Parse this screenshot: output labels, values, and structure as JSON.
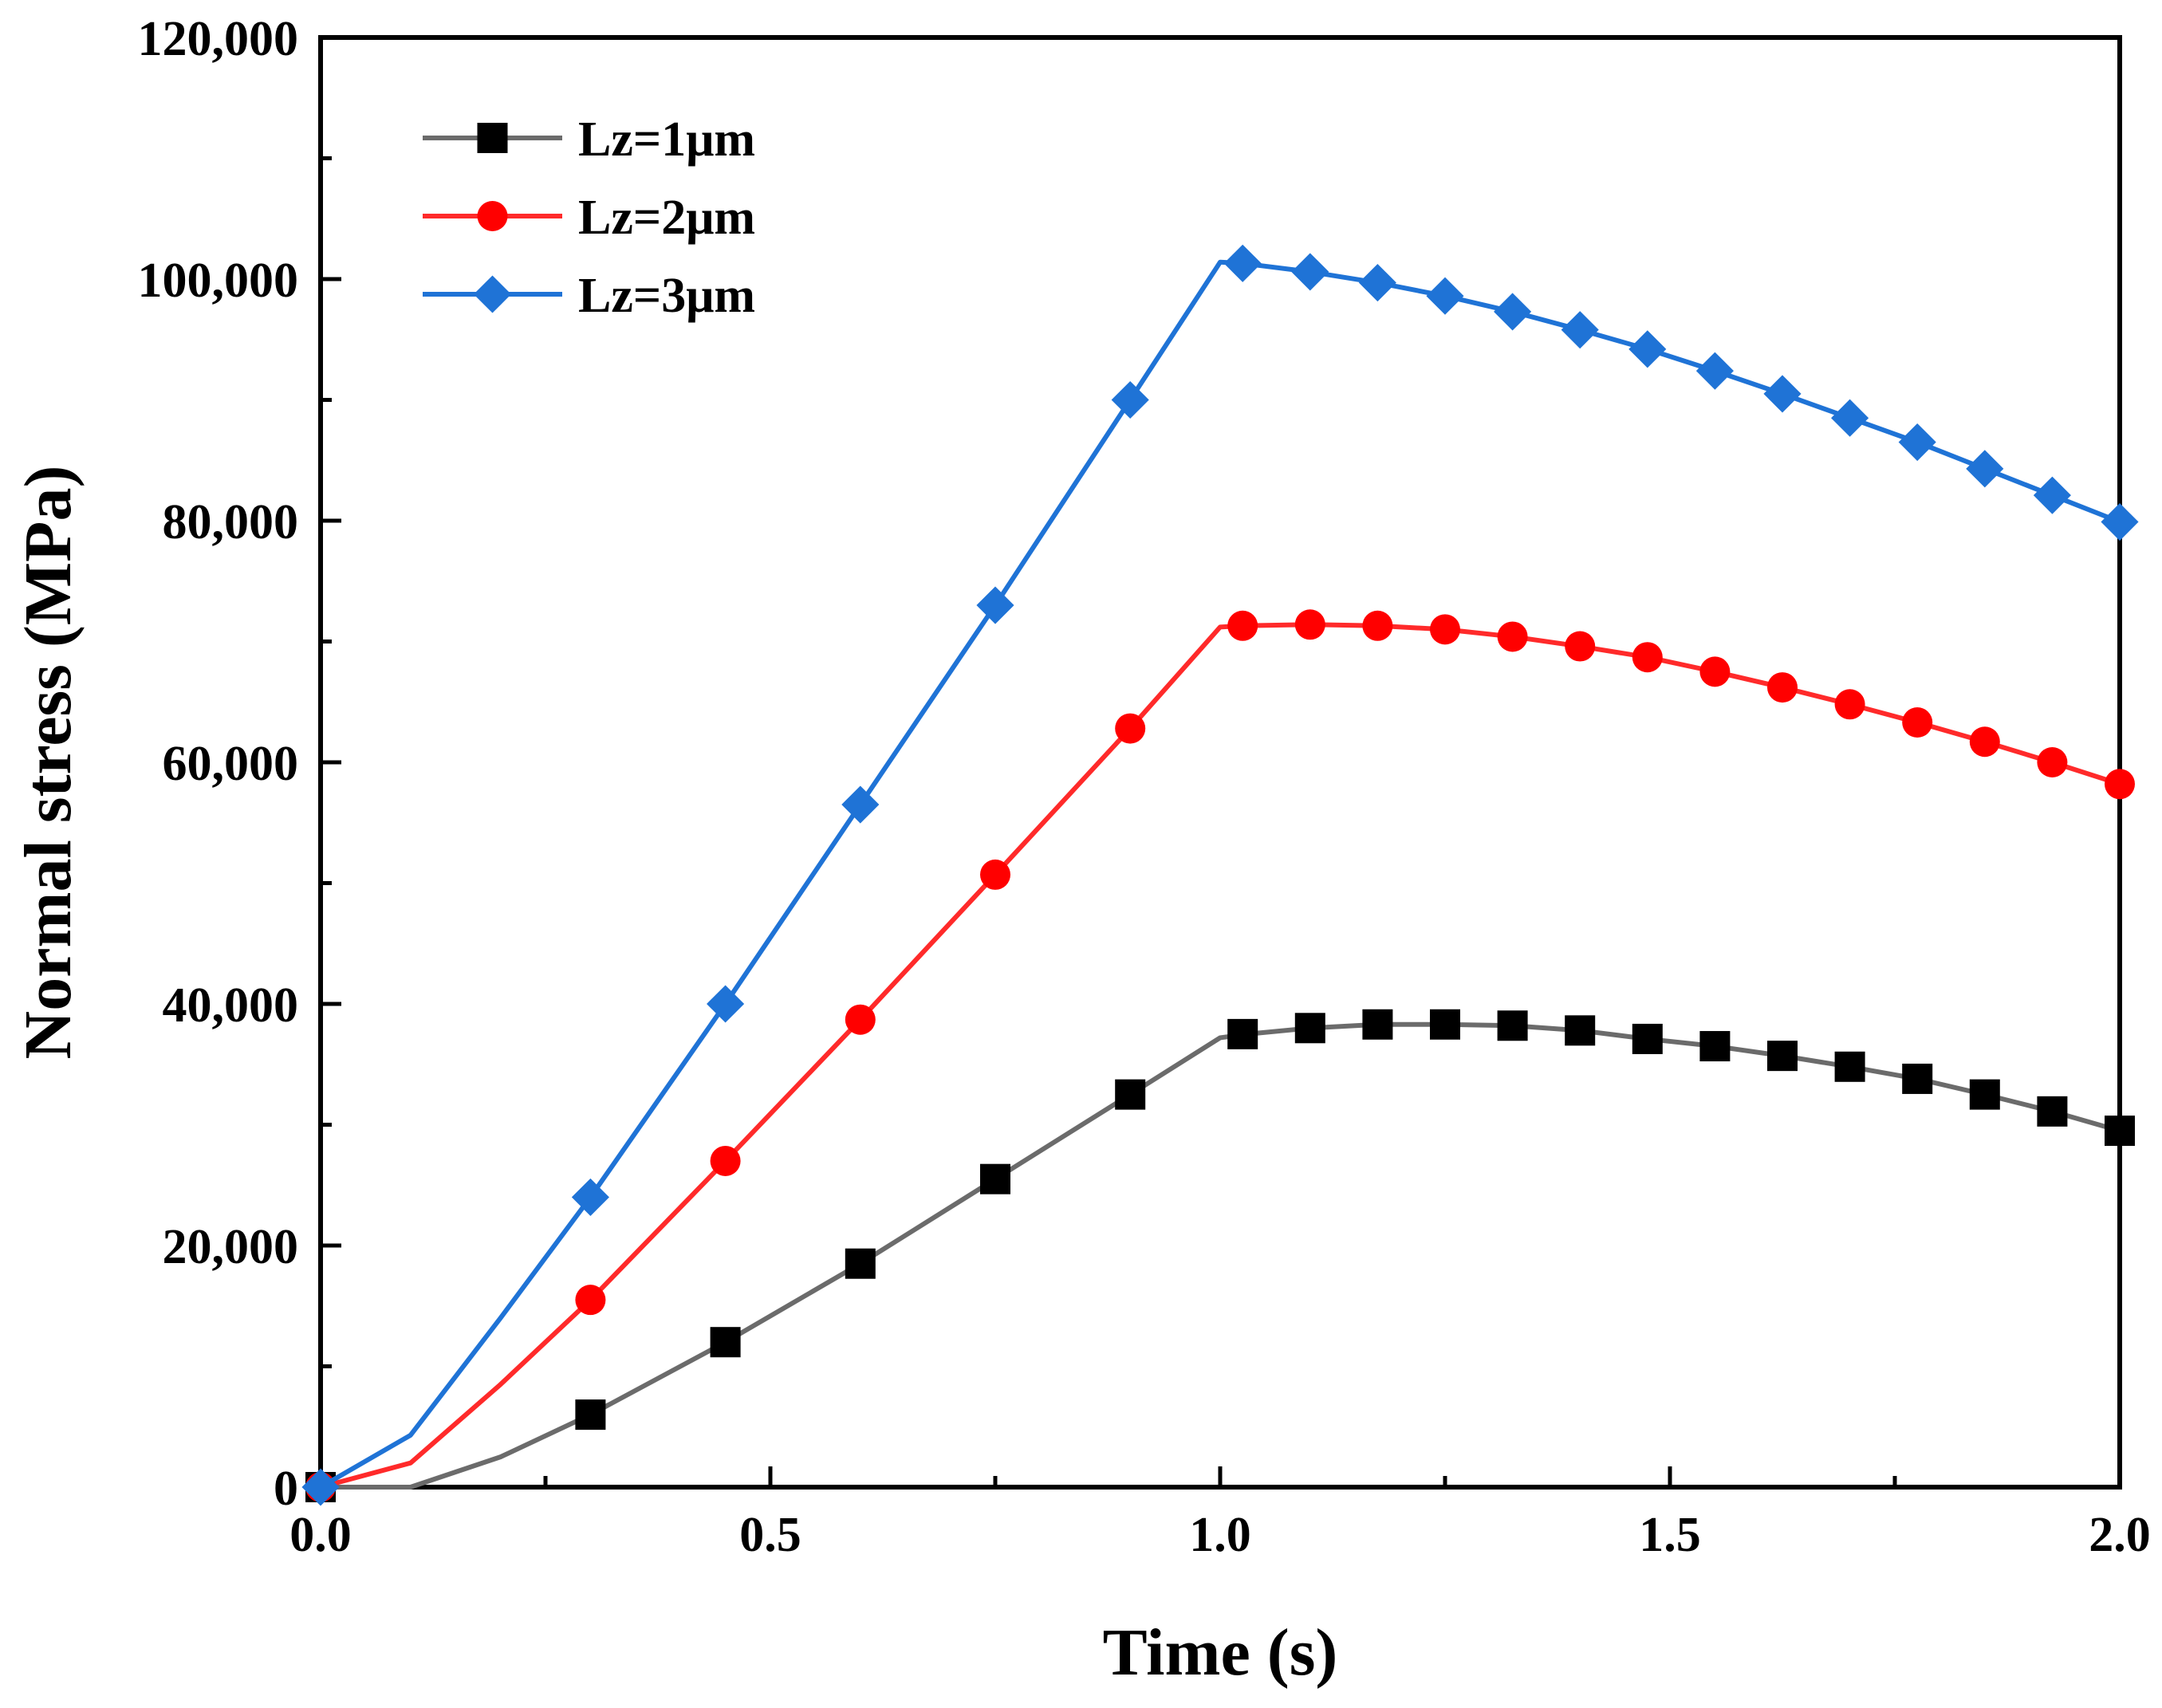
{
  "chart_data": {
    "type": "line",
    "title": "",
    "xlabel": "Time (s)",
    "ylabel": "Normal stress (MPa)",
    "xlim": [
      0,
      2
    ],
    "ylim": [
      0,
      120000
    ],
    "x_ticks": [
      0,
      0.5,
      1,
      1.5,
      2
    ],
    "x_tick_labels": [
      "0.0",
      "0.5",
      "1.0",
      "1.5",
      "2.0"
    ],
    "y_ticks": [
      0,
      20000,
      40000,
      60000,
      80000,
      100000,
      120000
    ],
    "y_tick_labels": [
      "0",
      "20,000",
      "40,000",
      "60,000",
      "80,000",
      "100,000",
      "120,000"
    ],
    "legend_position": "top-left",
    "grid": false,
    "series": [
      {
        "name": "Lz=1μm",
        "color": "#6b6b6b",
        "marker": "square",
        "marker_color": "#000000",
        "line_x": [
          0,
          0.1,
          0.2,
          0.3,
          0.45,
          0.6,
          0.75,
          0.9,
          1.0,
          1.03,
          1.1,
          1.175,
          1.25,
          1.325,
          1.4,
          1.475,
          1.55,
          1.625,
          1.7,
          1.775,
          1.85,
          1.925,
          2.0
        ],
        "line_y": [
          0,
          0,
          2500,
          6000,
          12000,
          18500,
          25500,
          32500,
          37200,
          37500,
          38000,
          38300,
          38300,
          38200,
          37800,
          37100,
          36500,
          35700,
          34800,
          33800,
          32500,
          31100,
          29500
        ],
        "marker_x": [
          0,
          0.3,
          0.45,
          0.6,
          0.75,
          0.9,
          1.025,
          1.1,
          1.175,
          1.25,
          1.325,
          1.4,
          1.475,
          1.55,
          1.625,
          1.7,
          1.775,
          1.85,
          1.925,
          2.0
        ],
        "marker_y": [
          0,
          6000,
          12000,
          18500,
          25500,
          32500,
          37500,
          38000,
          38300,
          38300,
          38200,
          37800,
          37100,
          36500,
          35700,
          34800,
          33800,
          32500,
          31100,
          29500
        ]
      },
      {
        "name": "Lz=2μm",
        "color": "#ff2a2a",
        "marker": "circle",
        "marker_color": "#ff0000",
        "line_x": [
          0,
          0.1,
          0.2,
          0.3,
          0.45,
          0.6,
          0.75,
          0.9,
          1.0,
          1.025,
          1.1,
          1.175,
          1.25,
          1.325,
          1.4,
          1.475,
          1.55,
          1.625,
          1.7,
          1.775,
          1.85,
          1.925,
          2.0
        ],
        "line_y": [
          0,
          2000,
          8500,
          15500,
          27000,
          38700,
          50700,
          62800,
          71200,
          71300,
          71400,
          71300,
          71000,
          70400,
          69600,
          68700,
          67500,
          66200,
          64800,
          63300,
          61700,
          60000,
          58200
        ],
        "marker_x": [
          0,
          0.3,
          0.45,
          0.6,
          0.75,
          0.9,
          1.025,
          1.1,
          1.175,
          1.25,
          1.325,
          1.4,
          1.475,
          1.55,
          1.625,
          1.7,
          1.775,
          1.85,
          1.925,
          2.0
        ],
        "marker_y": [
          0,
          15500,
          27000,
          38700,
          50700,
          62800,
          71300,
          71400,
          71300,
          71000,
          70400,
          69600,
          68700,
          67500,
          66200,
          64800,
          63300,
          61700,
          60000,
          58200
        ]
      },
      {
        "name": "Lz=3μm",
        "color": "#1f73d6",
        "marker": "diamond",
        "marker_color": "#1f73d6",
        "line_x": [
          0,
          0.1,
          0.2,
          0.3,
          0.45,
          0.6,
          0.75,
          0.9,
          1.0,
          1.025,
          1.1,
          1.175,
          1.25,
          1.325,
          1.4,
          1.475,
          1.55,
          1.625,
          1.7,
          1.775,
          1.85,
          1.925,
          2.0
        ],
        "line_y": [
          0,
          4300,
          14000,
          24000,
          40000,
          56500,
          73000,
          90000,
          101400,
          101300,
          100600,
          99700,
          98600,
          97300,
          95800,
          94200,
          92400,
          90500,
          88500,
          86500,
          84300,
          82100,
          79900
        ],
        "marker_x": [
          0,
          0.3,
          0.45,
          0.6,
          0.75,
          0.9,
          1.025,
          1.1,
          1.175,
          1.25,
          1.325,
          1.4,
          1.475,
          1.55,
          1.625,
          1.7,
          1.775,
          1.85,
          1.925,
          2.0
        ],
        "marker_y": [
          0,
          24000,
          40000,
          56500,
          73000,
          90000,
          101300,
          100600,
          99700,
          98600,
          97300,
          95800,
          94200,
          92400,
          90500,
          88500,
          86500,
          84300,
          82100,
          79900
        ]
      }
    ]
  }
}
